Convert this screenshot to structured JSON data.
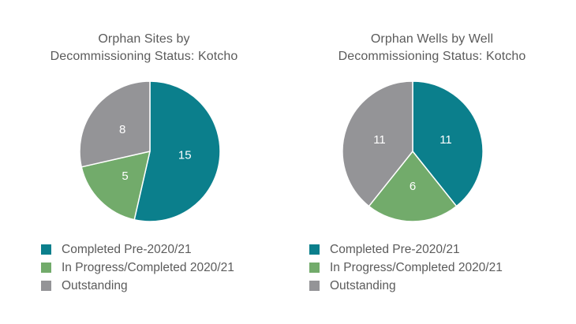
{
  "colors": {
    "completed_pre": "#0b7f8c",
    "in_progress": "#72ab6b",
    "outstanding": "#949497"
  },
  "chart_data": [
    {
      "type": "pie",
      "title_lines": [
        "Orphan Sites by",
        "Decommissioning Status: Kotcho"
      ],
      "start_angle_deg": 0,
      "direction": "clockwise",
      "slices": [
        {
          "label": "Completed Pre-2020/21",
          "value": 15,
          "color_key": "completed_pre"
        },
        {
          "label": "In Progress/Completed 2020/21",
          "value": 5,
          "color_key": "in_progress"
        },
        {
          "label": "Outstanding",
          "value": 8,
          "color_key": "outstanding"
        }
      ],
      "legend": [
        "Completed Pre-2020/21",
        "In Progress/Completed 2020/21",
        "Outstanding"
      ],
      "legend_position": "bottom-left"
    },
    {
      "type": "pie",
      "title_lines": [
        "Orphan Wells by Well",
        "Decommissioning Status: Kotcho"
      ],
      "start_angle_deg": 0,
      "direction": "clockwise",
      "slices": [
        {
          "label": "Completed Pre-2020/21",
          "value": 11,
          "color_key": "completed_pre"
        },
        {
          "label": "In Progress/Completed 2020/21",
          "value": 6,
          "color_key": "in_progress"
        },
        {
          "label": "Outstanding",
          "value": 11,
          "color_key": "outstanding"
        }
      ],
      "legend": [
        "Completed Pre-2020/21",
        "In Progress/Completed 2020/21",
        "Outstanding"
      ],
      "legend_position": "bottom-left"
    }
  ]
}
